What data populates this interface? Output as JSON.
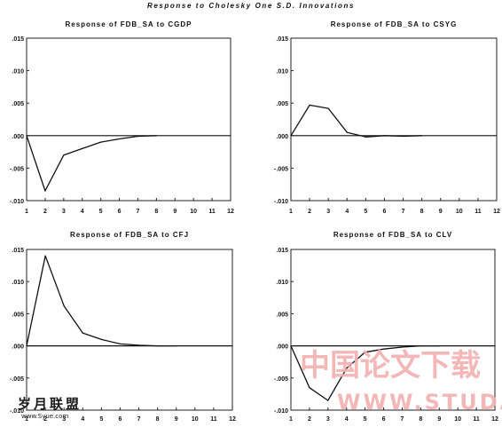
{
  "figure_title": "Response to Cholesky One S.D. Innovations",
  "watermark": {
    "cn_text": "中国论文下载",
    "url_text": "WWW.STUDA.",
    "logo_text": "岁月联盟",
    "logo_sub": "www.Syue.com"
  },
  "chart_data": [
    {
      "type": "line",
      "title": "Response of FDB_SA to CGDP",
      "x": [
        1,
        2,
        3,
        4,
        5,
        6,
        7,
        8,
        9,
        10,
        11,
        12
      ],
      "xticks": [
        "1",
        "2",
        "3",
        "4",
        "5",
        "6",
        "7",
        "8",
        "9",
        "10",
        "11",
        "12"
      ],
      "ylim": [
        -0.01,
        0.015
      ],
      "yticks": [
        ".015",
        ".010",
        ".005",
        ".000",
        "-.005",
        "-.010"
      ],
      "series": [
        {
          "values": [
            0.0,
            -0.0085,
            -0.003,
            -0.002,
            -0.001,
            -0.0005,
            -0.0001,
            0.0,
            null,
            null,
            null,
            null
          ]
        }
      ],
      "grid": false
    },
    {
      "type": "line",
      "title": "Response of FDB_SA to CSYG",
      "x": [
        1,
        2,
        3,
        4,
        5,
        6,
        7,
        8,
        9,
        10,
        11,
        12
      ],
      "xticks": [
        "1",
        "2",
        "3",
        "4",
        "5",
        "6",
        "7",
        "8",
        "9",
        "10",
        "11",
        "12"
      ],
      "ylim": [
        -0.01,
        0.015
      ],
      "yticks": [
        ".015",
        ".010",
        ".005",
        ".000",
        "-.005",
        "-.010"
      ],
      "series": [
        {
          "values": [
            0.0,
            0.0047,
            0.0042,
            0.0005,
            -0.0002,
            0.0,
            -0.0001,
            0.0,
            null,
            null,
            null,
            null
          ]
        }
      ],
      "grid": false
    },
    {
      "type": "line",
      "title": "Response of FDB_SA to CFJ",
      "x": [
        1,
        2,
        3,
        4,
        5,
        6,
        7,
        8,
        9,
        10,
        11,
        12
      ],
      "xticks": [
        "1",
        "2",
        "3",
        "4",
        "5",
        "6",
        "7",
        "8",
        "9",
        "10",
        "11",
        "12"
      ],
      "ylim": [
        -0.01,
        0.015
      ],
      "yticks": [
        ".015",
        ".010",
        ".005",
        ".000",
        "-.005",
        "-.010"
      ],
      "series": [
        {
          "values": [
            0.0,
            0.014,
            0.0062,
            0.002,
            0.001,
            0.0003,
            0.0001,
            0.0,
            0.0,
            null,
            null,
            null
          ]
        }
      ],
      "grid": false
    },
    {
      "type": "line",
      "title": "Response of FDB_SA to CLV",
      "x": [
        1,
        2,
        3,
        4,
        5,
        6,
        7,
        8,
        9,
        10,
        11,
        12
      ],
      "xticks": [
        "1",
        "2",
        "3",
        "4",
        "5",
        "6",
        "7",
        "8",
        "9",
        "10",
        "11",
        "12"
      ],
      "ylim": [
        -0.01,
        0.015
      ],
      "yticks": [
        ".015",
        ".010",
        ".005",
        ".000",
        "-.005",
        "-.010"
      ],
      "series": [
        {
          "values": [
            0.0,
            -0.0065,
            -0.0085,
            -0.0035,
            -0.001,
            -0.0005,
            -0.0002,
            0.0,
            0.0,
            null,
            null,
            null
          ]
        }
      ],
      "grid": false
    }
  ]
}
